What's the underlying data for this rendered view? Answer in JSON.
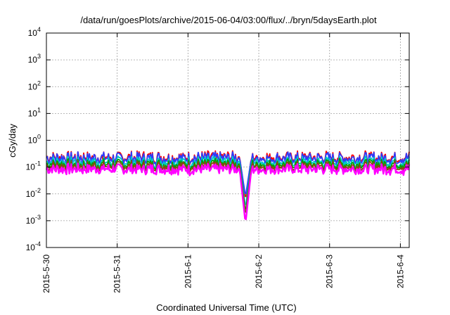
{
  "chart_data": {
    "type": "line",
    "title": "/data/run/goesPlots/archive/2015-06-04/03:00/flux/../bryn/5daysEarth.plot",
    "xlabel": "Coordinated Universal Time (UTC)",
    "ylabel": "cGy/day",
    "yscale": "log",
    "ylim": [
      0.0001,
      10000
    ],
    "xlim": [
      "2015-05-30 00:00",
      "2015-06-04 03:00"
    ],
    "grid": true,
    "legend": "none",
    "x_ticks": [
      "2015-5-30",
      "2015-5-31",
      "2015-6-1",
      "2015-6-2",
      "2015-6-3",
      "2015-6-4"
    ],
    "y_ticks": [
      {
        "value": 0.0001,
        "base": "10",
        "exp": "-4"
      },
      {
        "value": 0.001,
        "base": "10",
        "exp": "-3"
      },
      {
        "value": 0.01,
        "base": "10",
        "exp": "-2"
      },
      {
        "value": 0.1,
        "base": "10",
        "exp": "-1"
      },
      {
        "value": 1,
        "base": "10",
        "exp": "0"
      },
      {
        "value": 10,
        "base": "10",
        "exp": "1"
      },
      {
        "value": 100,
        "base": "10",
        "exp": "2"
      },
      {
        "value": 1000,
        "base": "10",
        "exp": "3"
      },
      {
        "value": 10000,
        "base": "10",
        "exp": "4"
      }
    ],
    "series": [
      {
        "color": "#ff0000",
        "baseline": 0.24,
        "dip_min": 0.006,
        "noise": 0.55,
        "low_spikes": 0.6
      },
      {
        "color": "#2b3bff",
        "baseline": 0.22,
        "dip_min": 0.008,
        "noise": 0.55,
        "low_spikes": 0.6
      },
      {
        "color": "#00c8c8",
        "baseline": 0.16,
        "dip_min": 0.003,
        "noise": 0.45,
        "low_spikes": 0.55
      },
      {
        "color": "#00a000",
        "baseline": 0.13,
        "dip_min": 0.002,
        "noise": 0.35,
        "low_spikes": 0.5
      },
      {
        "color": "#8b4513",
        "baseline": 0.11,
        "dip_min": 0.0015,
        "noise": 0.3,
        "low_spikes": 0.45
      },
      {
        "color": "#ff00ff",
        "baseline": 0.085,
        "dip_min": 0.0008,
        "noise": 0.35,
        "low_spikes": 0.3
      }
    ],
    "dip_window": [
      "2015-06-01 18:00",
      "2015-06-01 21:00"
    ]
  }
}
